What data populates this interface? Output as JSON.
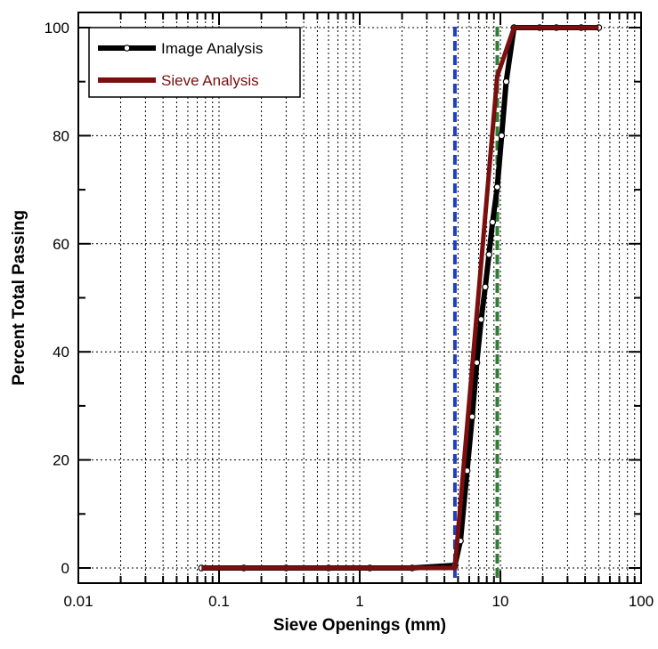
{
  "chart_data": {
    "type": "line",
    "xlabel": "Sieve Openings (mm)",
    "ylabel": "Percent Total Passing",
    "x_scale": "log",
    "xlim": [
      0.01,
      100
    ],
    "ylim": [
      0,
      100
    ],
    "x_ticks": [
      "0.01",
      "0.1",
      "1",
      "10",
      "100"
    ],
    "y_ticks": [
      "0",
      "20",
      "40",
      "60",
      "80",
      "100"
    ],
    "grid": true,
    "legend_position": "top-left",
    "vertical_lines": [
      {
        "x": 4.75,
        "color": "#1f3fbf",
        "style": "dashed"
      },
      {
        "x": 9.5,
        "color": "#2e7d32",
        "style": "dashed"
      }
    ],
    "series": [
      {
        "name": "Image Analysis",
        "color": "#000000",
        "markers": true,
        "x": [
          0.075,
          0.15,
          0.3,
          0.6,
          1.18,
          2.36,
          4.75,
          5.2,
          5.8,
          6.3,
          6.8,
          7.3,
          7.8,
          8.3,
          8.8,
          9.5,
          10.2,
          11.0,
          12.5,
          19,
          25,
          37.5,
          50
        ],
        "y": [
          0,
          0,
          0,
          0,
          0,
          0,
          0.5,
          5,
          18,
          28,
          38,
          46,
          52,
          58,
          64,
          70.5,
          80,
          90,
          100,
          100,
          100,
          100,
          100
        ]
      },
      {
        "name": "Sieve Analysis",
        "color": "#7b0f0f",
        "markers": false,
        "x": [
          0.075,
          0.15,
          0.3,
          0.6,
          1.18,
          2.36,
          4.75,
          9.5,
          12.5,
          19,
          25,
          37.5,
          50
        ],
        "y": [
          0,
          0,
          0,
          0,
          0,
          0,
          0,
          91,
          100,
          100,
          100,
          100,
          100
        ]
      }
    ]
  }
}
